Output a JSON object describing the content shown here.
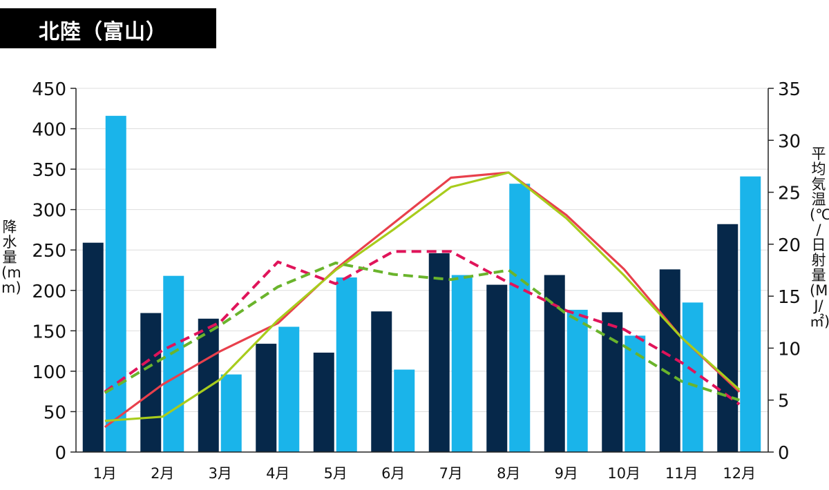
{
  "chart_data": {
    "type": "bar",
    "title": "北陸（富山）",
    "categories": [
      "1月",
      "2月",
      "3月",
      "4月",
      "5月",
      "6月",
      "7月",
      "8月",
      "9月",
      "10月",
      "11月",
      "12月"
    ],
    "ylabel_left": "降水量(mm)",
    "ylabel_right": "平均気温(℃) / 日射量(MJ/㎡)",
    "ylim_left": [
      0,
      450
    ],
    "ylim_right": [
      0,
      35
    ],
    "yticks_left": [
      "0",
      "50",
      "100",
      "150",
      "200",
      "250",
      "300",
      "350",
      "400",
      "450"
    ],
    "yticks_right": [
      "0",
      "5",
      "10",
      "15",
      "20",
      "25",
      "30",
      "35"
    ],
    "grid": true,
    "bar_series": [
      {
        "color": "#06284a",
        "values": [
          259,
          172,
          165,
          134,
          123,
          174,
          246,
          207,
          219,
          173,
          226,
          282
        ]
      },
      {
        "color": "#1ab4ea",
        "values": [
          416,
          218,
          96,
          155,
          216,
          102,
          219,
          332,
          176,
          144,
          185,
          341
        ]
      }
    ],
    "line_series": [
      {
        "color": "#e8404c",
        "style": "solid",
        "values": [
          2.4,
          6.5,
          9.7,
          12.4,
          17.6,
          22.0,
          26.4,
          26.9,
          22.8,
          17.6,
          11.0,
          5.8
        ]
      },
      {
        "color": "#a8cc1c",
        "style": "solid",
        "values": [
          3.0,
          3.4,
          7.0,
          12.7,
          17.5,
          21.4,
          25.5,
          26.9,
          22.5,
          17.0,
          11.0,
          6.0
        ]
      },
      {
        "color": "#e0145a",
        "style": "dashed",
        "values": [
          5.8,
          9.8,
          12.5,
          18.3,
          16.2,
          19.3,
          19.3,
          16.3,
          13.6,
          11.8,
          8.6,
          4.6
        ]
      },
      {
        "color": "#6ab42c",
        "style": "dashed",
        "values": [
          5.7,
          9.0,
          12.2,
          15.9,
          18.2,
          17.1,
          16.6,
          17.5,
          13.3,
          10.2,
          6.8,
          5.0
        ]
      }
    ]
  }
}
